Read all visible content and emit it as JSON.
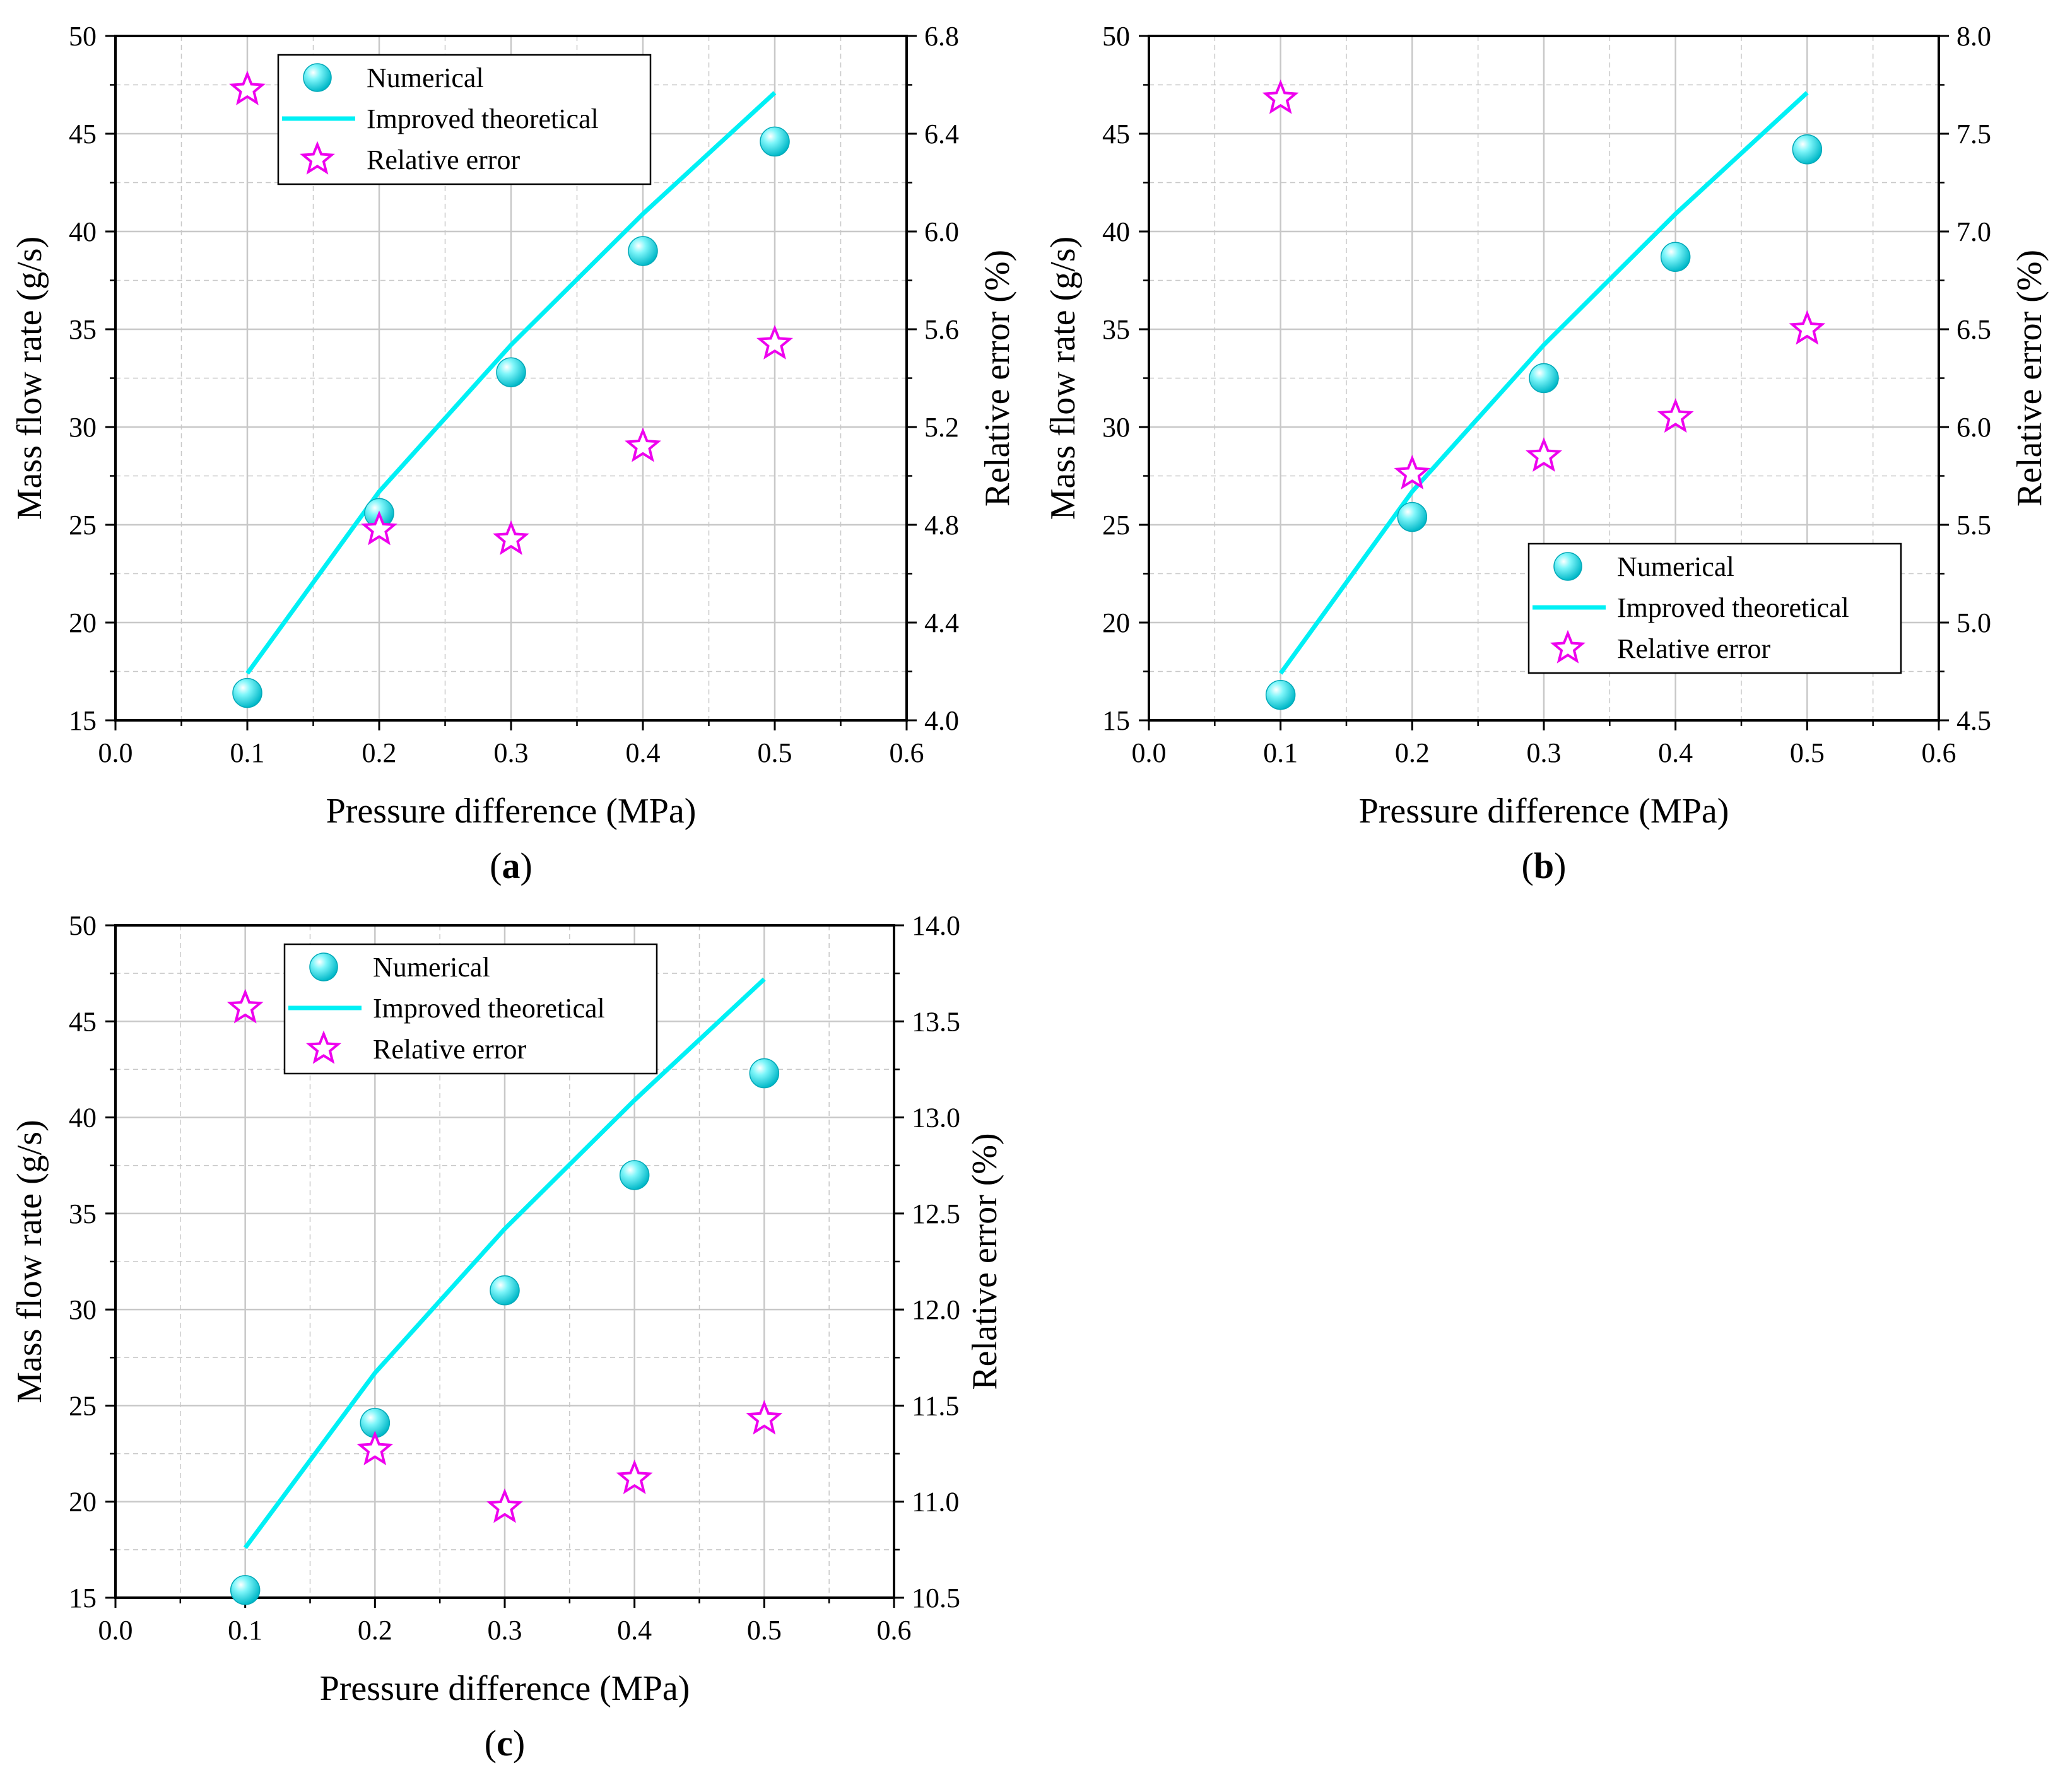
{
  "colors": {
    "numerical": "#00e5ee",
    "improved_theoretical": "#00f0f5",
    "relative_error": "#ee00ee",
    "grid": "#c8c8c8",
    "axis": "#000000"
  },
  "legend_labels": [
    "Numerical",
    "Improved theoretical",
    "Relative error"
  ],
  "chart_data": [
    {
      "type": "scatter+line (dual y-axis)",
      "panel": "a",
      "panel_label": "(a)",
      "panel_letter": "a",
      "xlabel": "Pressure difference (MPa)",
      "ylabel_left": "Mass flow rate (g/s)",
      "ylabel_right": "Relative error (%)",
      "xlim": [
        0.0,
        0.6
      ],
      "ylim_left": [
        15,
        50
      ],
      "ylim_right": [
        4.0,
        6.8
      ],
      "x_ticks": [
        "0.0",
        "0.1",
        "0.2",
        "0.3",
        "0.4",
        "0.5",
        "0.6"
      ],
      "y_left_ticks": [
        "15",
        "20",
        "25",
        "30",
        "35",
        "40",
        "45",
        "50"
      ],
      "y_right_ticks": [
        "4.0",
        "4.4",
        "4.8",
        "5.2",
        "5.6",
        "6.0",
        "6.4",
        "6.8"
      ],
      "legend_position": "top-left",
      "grid": true,
      "series": [
        {
          "name": "Numerical",
          "axis": "left",
          "style": "sphere",
          "x": [
            0.1,
            0.2,
            0.3,
            0.4,
            0.5
          ],
          "values": [
            16.4,
            25.6,
            32.8,
            39.0,
            44.6
          ]
        },
        {
          "name": "Improved theoretical",
          "axis": "left",
          "style": "line",
          "x": [
            0.1,
            0.2,
            0.3,
            0.4,
            0.5
          ],
          "values": [
            17.4,
            26.7,
            34.2,
            40.9,
            47.1
          ]
        },
        {
          "name": "Relative error",
          "axis": "right",
          "style": "star",
          "x": [
            0.1,
            0.2,
            0.3,
            0.4,
            0.5
          ],
          "values": [
            6.58,
            4.78,
            4.74,
            5.12,
            5.54
          ]
        }
      ]
    },
    {
      "type": "scatter+line (dual y-axis)",
      "panel": "b",
      "panel_label": "(b)",
      "panel_letter": "b",
      "xlabel": "Pressure difference (MPa)",
      "ylabel_left": "Mass flow rate (g/s)",
      "ylabel_right": "Relative error (%)",
      "xlim": [
        0.0,
        0.6
      ],
      "ylim_left": [
        15,
        50
      ],
      "ylim_right": [
        4.5,
        8.0
      ],
      "x_ticks": [
        "0.0",
        "0.1",
        "0.2",
        "0.3",
        "0.4",
        "0.5",
        "0.6"
      ],
      "y_left_ticks": [
        "15",
        "20",
        "25",
        "30",
        "35",
        "40",
        "45",
        "50"
      ],
      "y_right_ticks": [
        "4.5",
        "5.0",
        "5.5",
        "6.0",
        "6.5",
        "7.0",
        "7.5",
        "8.0"
      ],
      "legend_position": "bottom-right",
      "grid": true,
      "series": [
        {
          "name": "Numerical",
          "axis": "left",
          "style": "sphere",
          "x": [
            0.1,
            0.2,
            0.3,
            0.4,
            0.5
          ],
          "values": [
            16.3,
            25.4,
            32.5,
            38.7,
            44.2
          ]
        },
        {
          "name": "Improved theoretical",
          "axis": "left",
          "style": "line",
          "x": [
            0.1,
            0.2,
            0.3,
            0.4,
            0.5
          ],
          "values": [
            17.4,
            26.7,
            34.2,
            40.9,
            47.1
          ]
        },
        {
          "name": "Relative error",
          "axis": "right",
          "style": "star",
          "x": [
            0.1,
            0.2,
            0.3,
            0.4,
            0.5
          ],
          "values": [
            7.68,
            5.76,
            5.85,
            6.05,
            6.5
          ]
        }
      ]
    },
    {
      "type": "scatter+line (dual y-axis)",
      "panel": "c",
      "panel_label": "(c)",
      "panel_letter": "c",
      "xlabel": "Pressure difference (MPa)",
      "ylabel_left": "Mass flow rate (g/s)",
      "ylabel_right": "Relative error (%)",
      "xlim": [
        0.0,
        0.6
      ],
      "ylim_left": [
        15,
        50
      ],
      "ylim_right": [
        10.5,
        14.0
      ],
      "x_ticks": [
        "0.0",
        "0.1",
        "0.2",
        "0.3",
        "0.4",
        "0.5",
        "0.6"
      ],
      "y_left_ticks": [
        "15",
        "20",
        "25",
        "30",
        "35",
        "40",
        "45",
        "50"
      ],
      "y_right_ticks": [
        "10.5",
        "11.0",
        "11.5",
        "12.0",
        "12.5",
        "13.0",
        "13.5",
        "14.0"
      ],
      "legend_position": "top-left",
      "grid": true,
      "series": [
        {
          "name": "Numerical",
          "axis": "left",
          "style": "sphere",
          "x": [
            0.1,
            0.2,
            0.3,
            0.4,
            0.5
          ],
          "values": [
            15.4,
            24.1,
            31.0,
            37.0,
            42.3
          ]
        },
        {
          "name": "Improved theoretical",
          "axis": "left",
          "style": "line",
          "x": [
            0.1,
            0.2,
            0.3,
            0.4,
            0.5
          ],
          "values": [
            17.6,
            26.7,
            34.2,
            40.9,
            47.2
          ]
        },
        {
          "name": "Relative error",
          "axis": "right",
          "style": "star",
          "x": [
            0.1,
            0.2,
            0.3,
            0.4,
            0.5
          ],
          "values": [
            13.57,
            11.27,
            10.97,
            11.12,
            11.43
          ]
        }
      ]
    }
  ]
}
